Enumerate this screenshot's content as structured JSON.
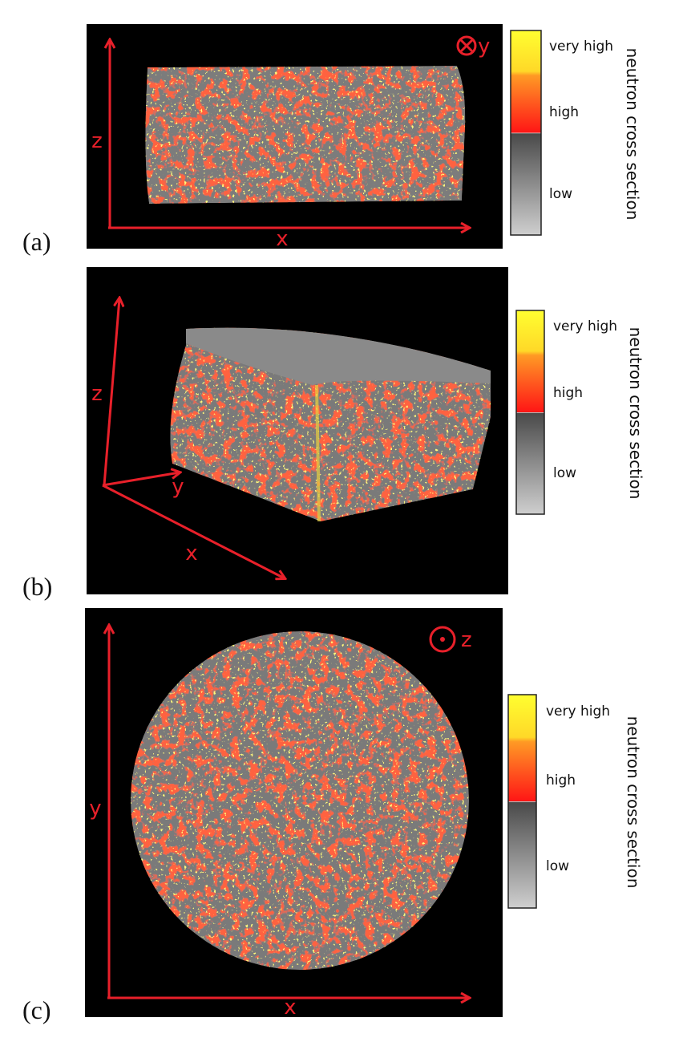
{
  "panels": [
    {
      "label": "(a)",
      "axes": {
        "vertical": "z",
        "horizontal": "x"
      },
      "view_direction": "y",
      "colorbar": {
        "title": "neutron cross section",
        "ticks": [
          "very high",
          "high",
          "low"
        ]
      }
    },
    {
      "label": "(b)",
      "axes": {
        "vertical": "z",
        "horizontal": "x",
        "depth": "y"
      },
      "colorbar": {
        "title": "neutron cross section",
        "ticks": [
          "very high",
          "high",
          "low"
        ]
      }
    },
    {
      "label": "(c)",
      "axes": {
        "vertical": "y",
        "horizontal": "x"
      },
      "view_direction": "z",
      "colorbar": {
        "title": "neutron cross section",
        "ticks": [
          "very high",
          "high",
          "low"
        ]
      }
    }
  ]
}
